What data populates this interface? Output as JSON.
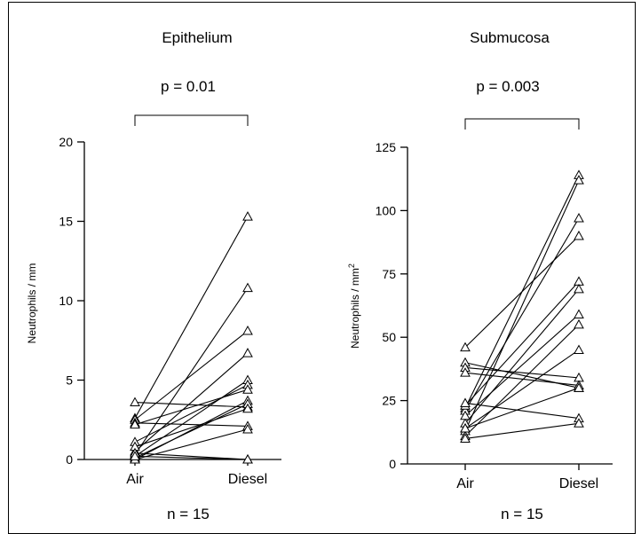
{
  "chart_data": [
    {
      "type": "line",
      "title": "Epithelium",
      "annotation": "p = 0.01",
      "footer": "n = 15",
      "ylabel": "Neutrophils / mm",
      "ylabel_superscript": "",
      "categories": [
        "Air",
        "Diesel"
      ],
      "ylim": [
        0,
        20
      ],
      "yticks": [
        "0",
        "5",
        "10",
        "15",
        "20"
      ],
      "ytick_values": [
        0,
        5,
        10,
        15,
        20
      ],
      "series": [
        {
          "values": [
            2.6,
            15.3
          ]
        },
        {
          "values": [
            0.3,
            10.8
          ]
        },
        {
          "values": [
            2.5,
            8.1
          ]
        },
        {
          "values": [
            0.5,
            6.7
          ]
        },
        {
          "values": [
            0.2,
            5.0
          ]
        },
        {
          "values": [
            1.1,
            4.7
          ]
        },
        {
          "values": [
            3.6,
            3.3
          ]
        },
        {
          "values": [
            0.0,
            3.7
          ]
        },
        {
          "values": [
            2.3,
            2.1
          ]
        },
        {
          "values": [
            0.1,
            3.5
          ]
        },
        {
          "values": [
            0.8,
            3.2
          ]
        },
        {
          "values": [
            0.0,
            1.9
          ]
        },
        {
          "values": [
            2.2,
            4.4
          ]
        },
        {
          "values": [
            0.4,
            0.0
          ]
        },
        {
          "values": [
            0.2,
            0.0
          ]
        }
      ]
    },
    {
      "type": "line",
      "title": "Submucosa",
      "annotation": "p = 0.003",
      "footer": "n = 15",
      "ylabel": "Neutrophils / mm",
      "ylabel_superscript": "2",
      "categories": [
        "Air",
        "Diesel"
      ],
      "ylim": [
        0,
        125
      ],
      "yticks": [
        "0",
        "25",
        "50",
        "75",
        "100",
        "125"
      ],
      "ytick_values": [
        0,
        25,
        50,
        75,
        100,
        125
      ],
      "series": [
        {
          "values": [
            46,
            90
          ]
        },
        {
          "values": [
            40,
            30
          ]
        },
        {
          "values": [
            38,
            34
          ]
        },
        {
          "values": [
            36,
            31
          ]
        },
        {
          "values": [
            22,
            114
          ]
        },
        {
          "values": [
            13,
            112
          ]
        },
        {
          "values": [
            21,
            97
          ]
        },
        {
          "values": [
            23,
            72
          ]
        },
        {
          "values": [
            16,
            69
          ]
        },
        {
          "values": [
            19,
            59
          ]
        },
        {
          "values": [
            11,
            55
          ]
        },
        {
          "values": [
            14,
            45
          ]
        },
        {
          "values": [
            24,
            18
          ]
        },
        {
          "values": [
            10,
            16
          ]
        },
        {
          "values": [
            14,
            30
          ]
        }
      ]
    }
  ]
}
